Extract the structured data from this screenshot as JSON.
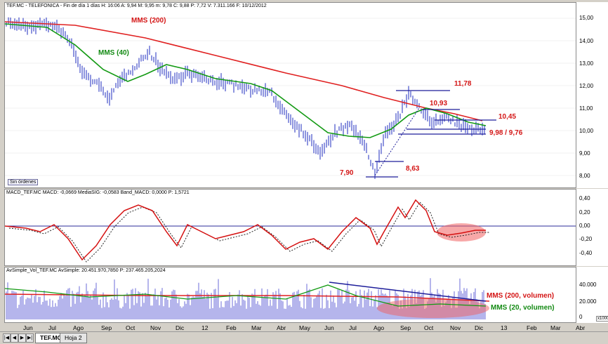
{
  "main": {
    "header": "TEF.MC - TELEFONICA - Fin de día 1 días  H: 16:06  A: 9,94  M: 9,95  m: 9,78  C: 9,88  P: 7,72  V: 7.311.166  F: 10/12/2012",
    "yticks": [
      "15,00",
      "14,00",
      "13,00",
      "12,00",
      "11,00",
      "10,00",
      "9,00",
      "8,00"
    ],
    "labels": {
      "mms200": "MMS (200)",
      "mms40": "MMS (40)",
      "l1178": "11,78",
      "l1093": "10,93",
      "l1045": "10,45",
      "l998": "9,98 / 9,76",
      "l863": "8,63",
      "l790": "7,90"
    },
    "sin_ordenes": "Sin órdenes"
  },
  "macd": {
    "header": "MACD_TEF.MC  MACD: -0,0669  MediaSIG: -0,0583  Band_MACD: 0,0000  P: 1,5721",
    "yticks": [
      "0,40",
      "0,20",
      "0,00",
      "-0,20",
      "-0,40"
    ]
  },
  "volume": {
    "header": "AvSimple_Vol_TEF.MC  AvSimple: 20.451.970,7850  P: 237.465.205,2024",
    "yticks": [
      "40.000",
      "20.000",
      "0"
    ],
    "unit": "x1000",
    "labels": {
      "mms200v": "MMS (200, volumen)",
      "mms20v": "MMS (20, volumen)"
    }
  },
  "xaxis": [
    "Jun",
    "Jul",
    "Ago",
    "Sep",
    "Oct",
    "Nov",
    "Dic",
    "12",
    "Feb",
    "Mar",
    "Abr",
    "May",
    "Jun",
    "Jul",
    "Ago",
    "Sep",
    "Oct",
    "Nov",
    "Dic",
    "13",
    "Feb",
    "Mar",
    "Abr"
  ],
  "tabs": [
    "TEF.MC",
    "Hoja 2"
  ],
  "nav": [
    "|◀",
    "◀",
    "▶",
    "▶|"
  ],
  "colors": {
    "price": "#1e2bbf",
    "mms200": "#e02020",
    "mms40": "#139a13",
    "macd": "#d51010",
    "signal": "#222222"
  }
}
